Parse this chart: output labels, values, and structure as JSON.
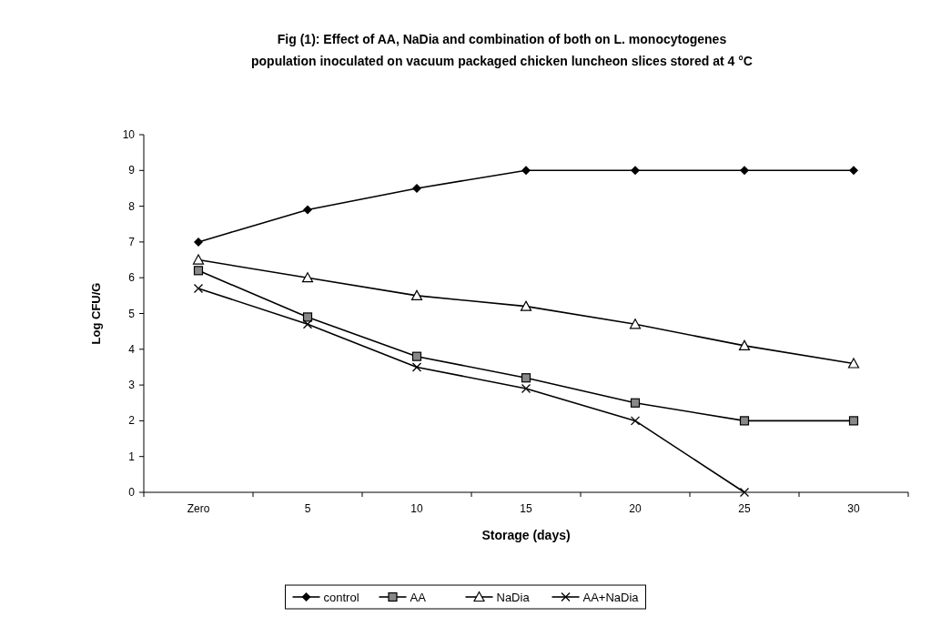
{
  "chart_data": {
    "type": "line",
    "title": "Fig (1): Effect of AA, NaDia and combination of both on L. monocytogenes\npopulation inoculated on vacuum packaged chicken luncheon slices stored at 4 °C",
    "xlabel": "Storage (days)",
    "ylabel": "Log CFU/G",
    "categories": [
      "Zero",
      "5",
      "10",
      "15",
      "20",
      "25",
      "30"
    ],
    "ylim": [
      0,
      10
    ],
    "yticks": [
      0,
      1,
      2,
      3,
      4,
      5,
      6,
      7,
      8,
      9,
      10
    ],
    "grid": false,
    "legend": "bottom",
    "series": [
      {
        "name": "control",
        "color": "#000000",
        "marker": "diamond",
        "values": [
          7,
          7.9,
          8.5,
          9,
          9,
          9,
          9
        ]
      },
      {
        "name": "AA",
        "color": "#000000",
        "marker": "square",
        "values": [
          6.2,
          4.9,
          3.8,
          3.2,
          2.5,
          2,
          2
        ]
      },
      {
        "name": "NaDia",
        "color": "#000000",
        "marker": "triangle",
        "values": [
          6.5,
          6,
          5.5,
          5.2,
          4.7,
          4.1,
          3.6
        ]
      },
      {
        "name": "AA+NaDia",
        "color": "#000000",
        "marker": "cross",
        "values": [
          5.7,
          4.7,
          3.5,
          2.9,
          2,
          0,
          null
        ]
      }
    ]
  }
}
